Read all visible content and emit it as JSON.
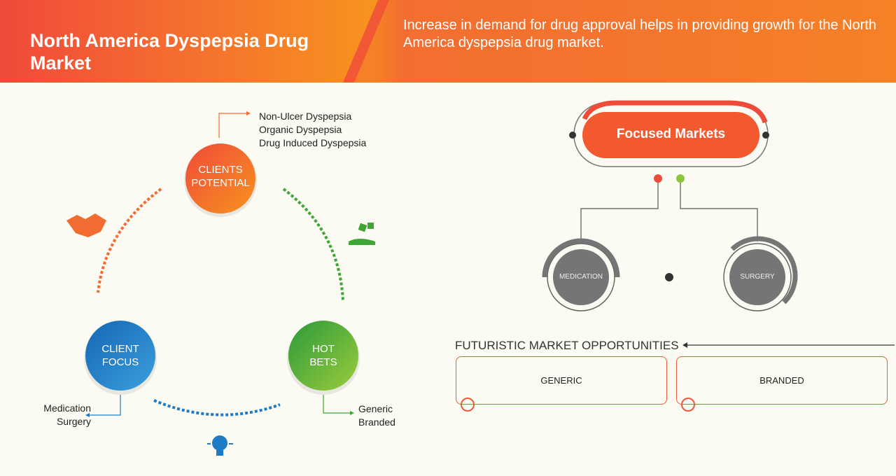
{
  "header": {
    "title": "North America Dyspepsia Drug Market",
    "subtitle": "Increase in demand for drug approval helps in providing growth for the North America dyspepsia drug market."
  },
  "cycle": {
    "clients_potential": {
      "label1": "CLIENTS",
      "label2": "POTENTIAL",
      "items": [
        "Non-Ulcer Dyspepsia",
        "Organic Dyspepsia",
        "Drug Induced Dyspepsia"
      ]
    },
    "client_focus": {
      "label1": "CLIENT",
      "label2": "FOCUS",
      "items": [
        "Medication",
        "Surgery"
      ]
    },
    "hot_bets": {
      "label1": "HOT",
      "label2": "BETS",
      "items": [
        "Generic",
        "Branded"
      ]
    },
    "icons": [
      "handshake-icon",
      "dice-hand-icon",
      "lightbulb-icon"
    ]
  },
  "focused": {
    "title": "Focused Markets",
    "segments": [
      "MEDICATION",
      "SURGERY"
    ]
  },
  "futuristic": {
    "title": "FUTURISTIC MARKET OPPORTUNITIES",
    "boxes": [
      "GENERIC",
      "BRANDED"
    ]
  },
  "colors": {
    "orange": "#f26b30",
    "red": "#f04a3a",
    "blue": "#1f7cc4",
    "green": "#3fa535",
    "gray": "#757575"
  }
}
